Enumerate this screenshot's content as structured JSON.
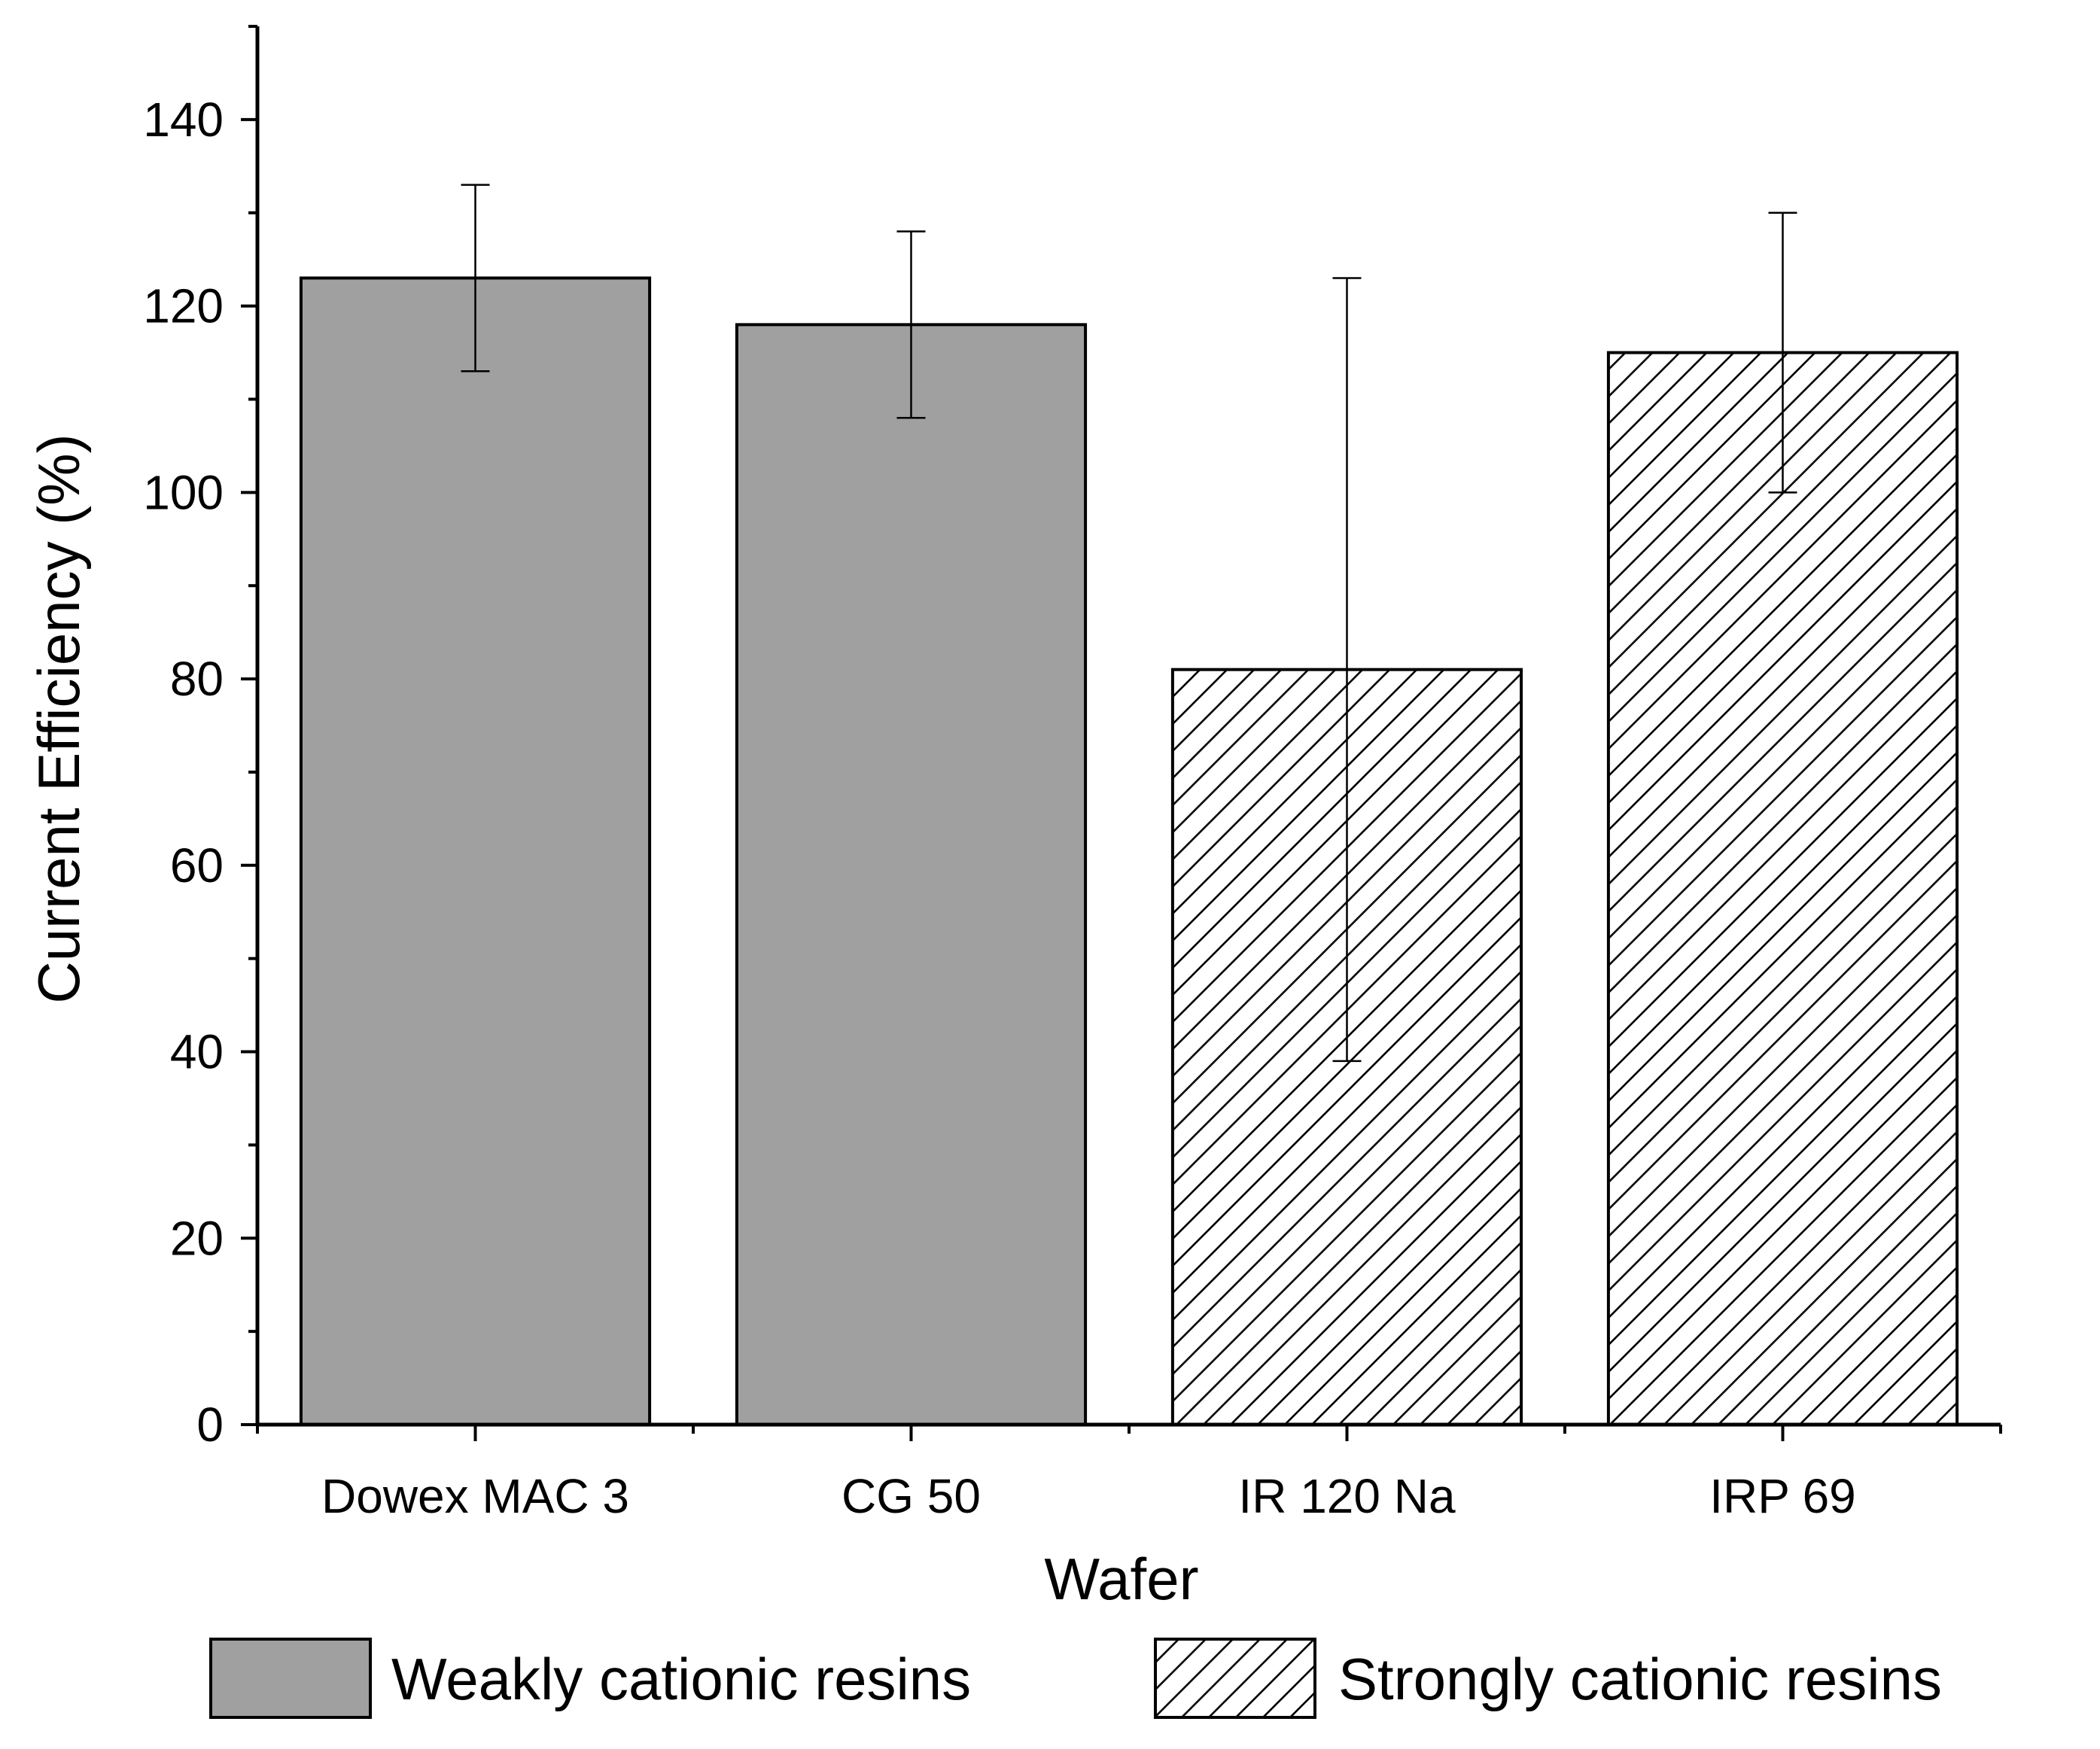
{
  "chart_data": {
    "type": "bar",
    "title": "",
    "xlabel": "Wafer",
    "ylabel": "Current Efficiency (%)",
    "categories": [
      "Dowex MAC 3",
      "CG 50",
      "IR 120 Na",
      "IRP 69"
    ],
    "values": [
      123,
      118,
      81,
      115
    ],
    "error_low": [
      113,
      108,
      39,
      100
    ],
    "error_high": [
      133,
      128,
      123,
      130
    ],
    "groups": [
      "weak",
      "weak",
      "strong",
      "strong"
    ],
    "ylim": [
      0,
      150
    ],
    "yticks": [
      0,
      20,
      40,
      60,
      80,
      100,
      120,
      140
    ],
    "ytick_labels": [
      "0",
      "20",
      "40",
      "60",
      "80",
      "100",
      "120",
      "140"
    ],
    "grid": false,
    "legend_position": "bottom",
    "legend": [
      {
        "key": "weak",
        "label": "Weakly cationic resins",
        "fill": "solid",
        "color": "#a0a0a0"
      },
      {
        "key": "strong",
        "label": "Strongly cationic resins",
        "fill": "hatch",
        "color": "#ffffff"
      }
    ]
  }
}
